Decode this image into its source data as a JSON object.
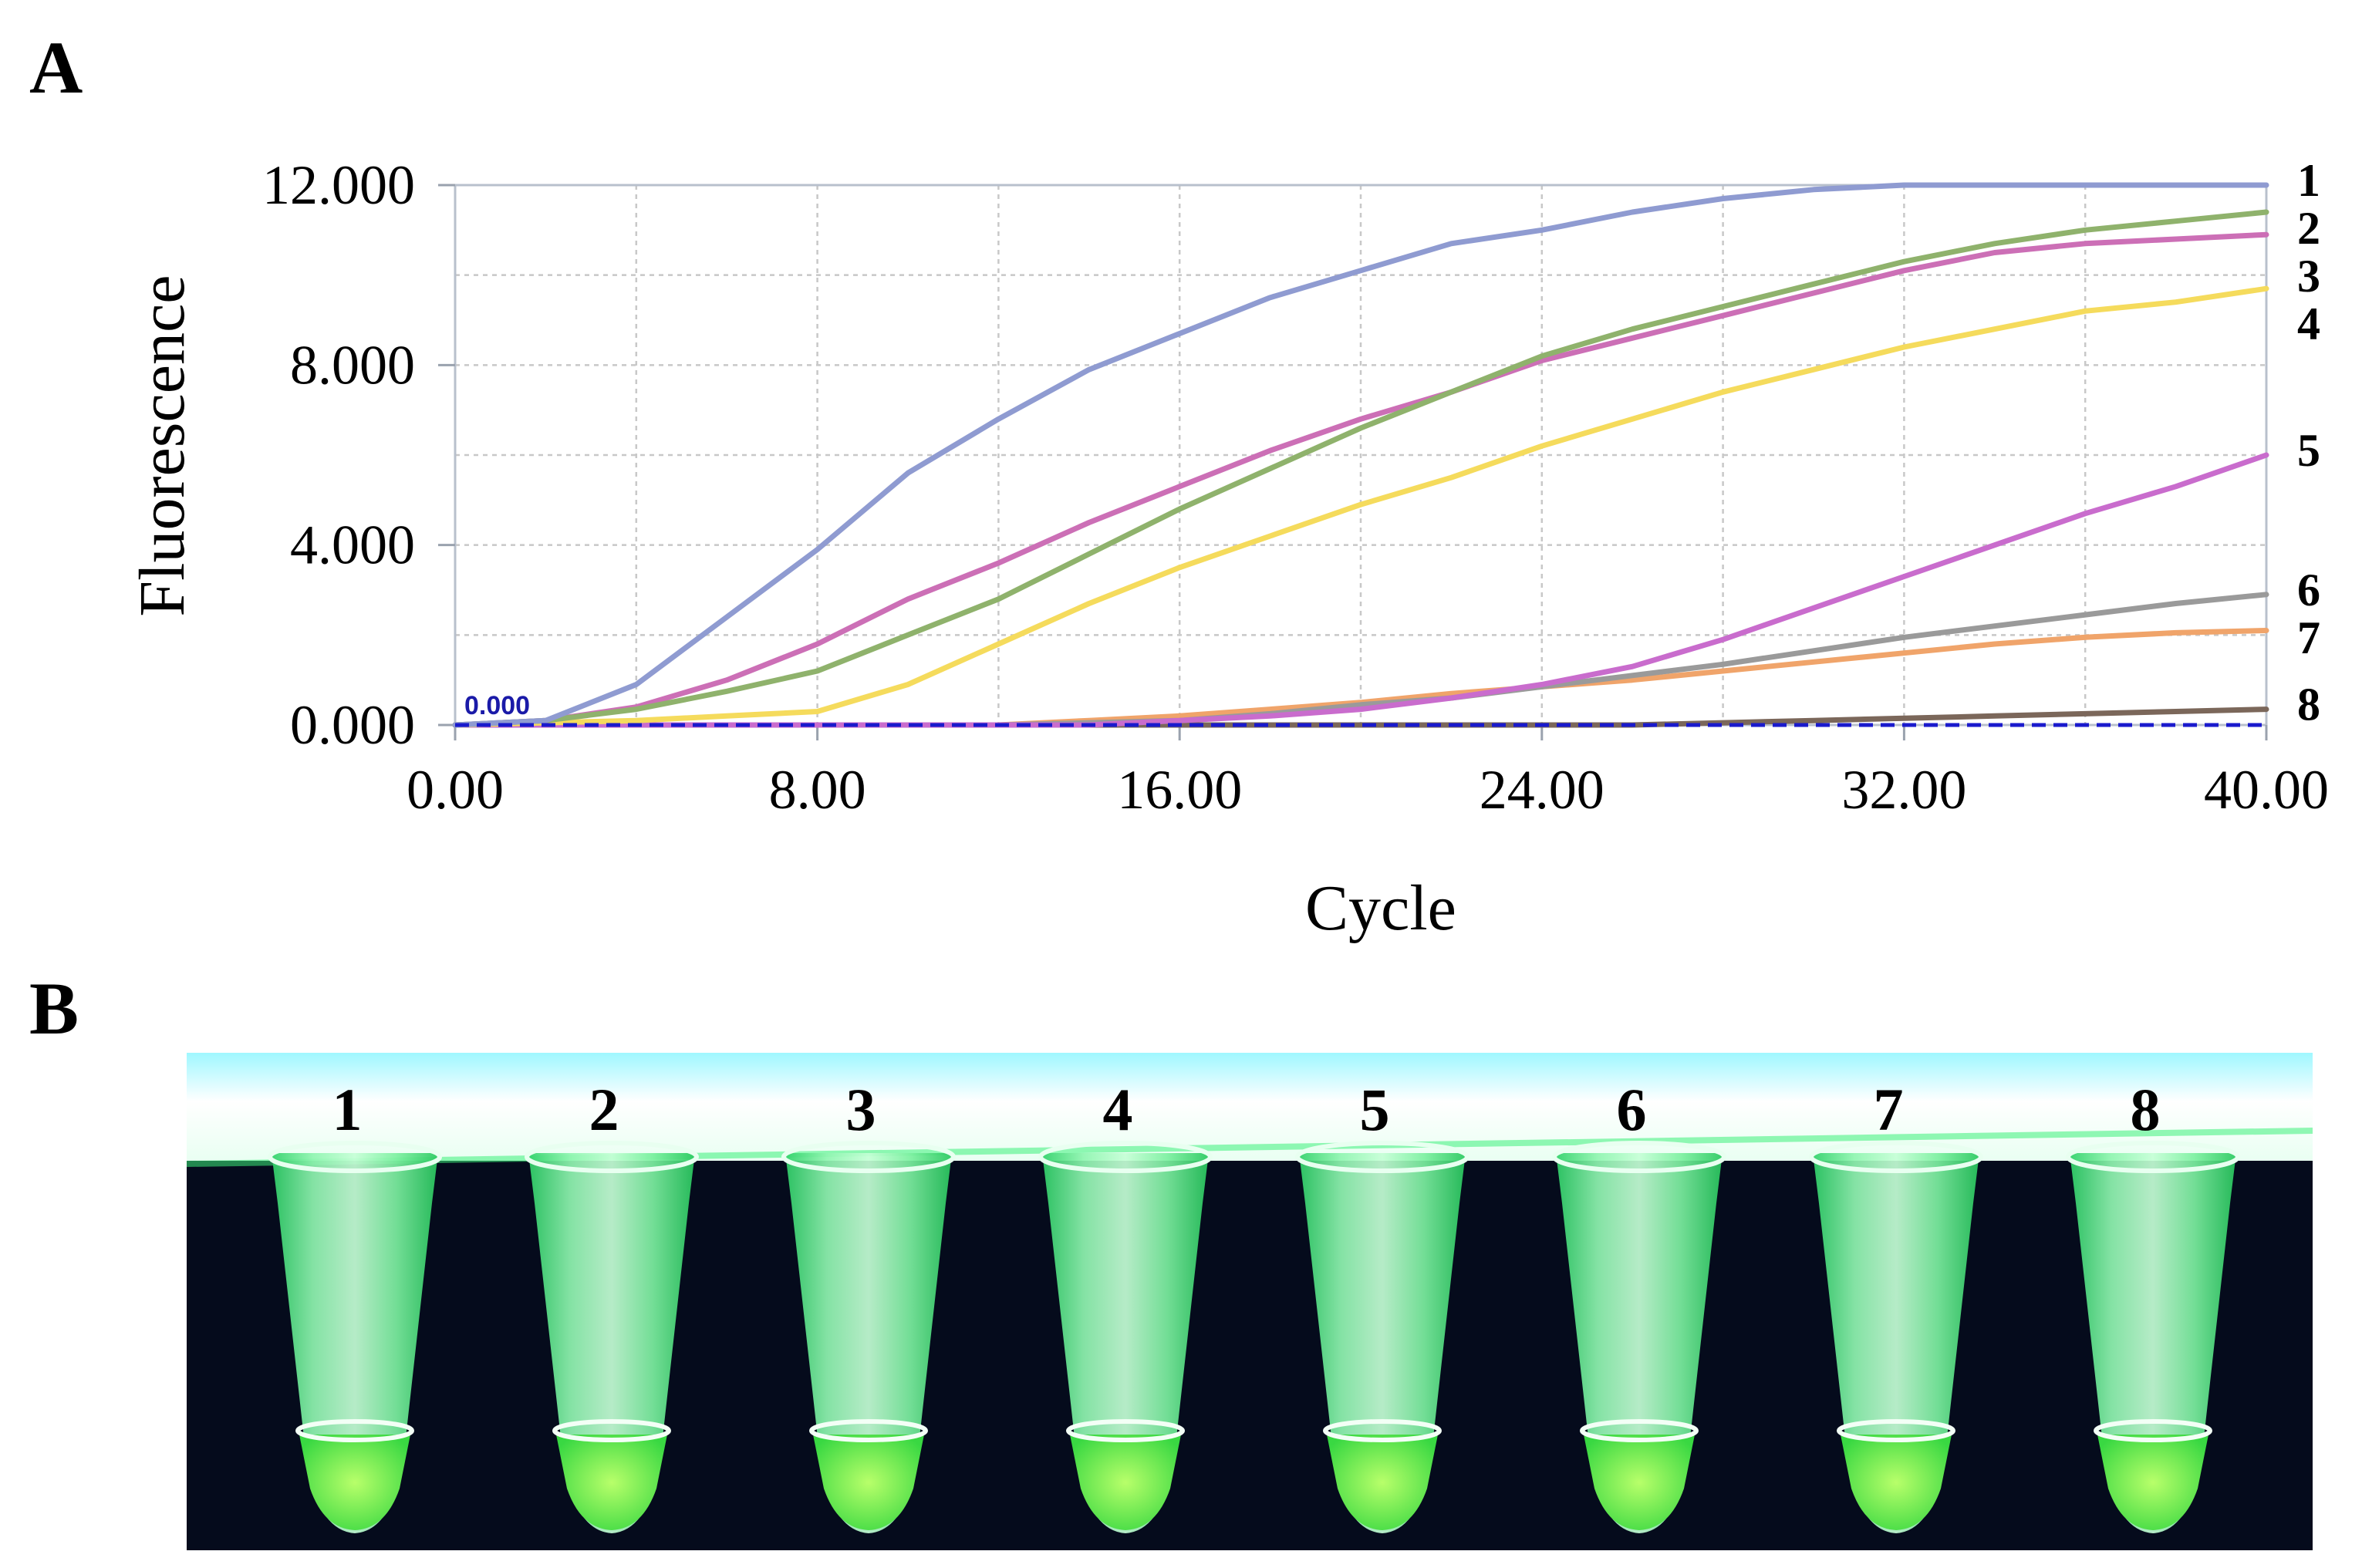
{
  "panels": {
    "a": "A",
    "b": "B"
  },
  "chart_data": {
    "type": "line",
    "xlabel": "Cycle",
    "ylabel": "Fluorescence",
    "xlim": [
      0,
      40
    ],
    "ylim": [
      0,
      12
    ],
    "x_ticks": [
      "0.00",
      "8.00",
      "16.00",
      "24.00",
      "32.00",
      "40.00"
    ],
    "x_tick_values": [
      0,
      8,
      16,
      24,
      32,
      40
    ],
    "y_ticks": [
      "0.000",
      "4.000",
      "8.000",
      "12.000"
    ],
    "y_tick_values": [
      0,
      4,
      8,
      12
    ],
    "grid": true,
    "threshold": {
      "label": "0.000",
      "value": 0,
      "color": "#1a1acc"
    },
    "x": [
      0,
      2,
      4,
      6,
      8,
      10,
      12,
      14,
      16,
      18,
      20,
      22,
      24,
      26,
      28,
      30,
      32,
      34,
      36,
      38,
      40
    ],
    "series": [
      {
        "label": "1",
        "color": "#8f9bd1",
        "values": [
          0,
          0.1,
          0.9,
          2.4,
          3.9,
          5.6,
          6.8,
          7.9,
          8.7,
          9.5,
          10.1,
          10.7,
          11.0,
          11.4,
          11.7,
          11.9,
          12.0,
          12.0,
          12.0,
          12.0,
          12.0
        ]
      },
      {
        "label": "2",
        "color": "#8fb26c",
        "values": [
          0,
          0.1,
          0.35,
          0.75,
          1.2,
          2.0,
          2.8,
          3.8,
          4.8,
          5.7,
          6.6,
          7.4,
          8.2,
          8.8,
          9.3,
          9.8,
          10.3,
          10.7,
          11.0,
          11.2,
          11.4
        ]
      },
      {
        "label": "3",
        "color": "#cc6fb6",
        "values": [
          0,
          0.1,
          0.4,
          1.0,
          1.8,
          2.8,
          3.6,
          4.5,
          5.3,
          6.1,
          6.8,
          7.4,
          8.1,
          8.6,
          9.1,
          9.6,
          10.1,
          10.5,
          10.7,
          10.8,
          10.9
        ]
      },
      {
        "label": "4",
        "color": "#f5db5c",
        "values": [
          0,
          0.05,
          0.1,
          0.2,
          0.3,
          0.9,
          1.8,
          2.7,
          3.5,
          4.2,
          4.9,
          5.5,
          6.2,
          6.8,
          7.4,
          7.9,
          8.4,
          8.8,
          9.2,
          9.4,
          9.7
        ]
      },
      {
        "label": "5",
        "color": "#c96ccd",
        "values": [
          0,
          0,
          0,
          0,
          0,
          0,
          0,
          0,
          0.1,
          0.2,
          0.35,
          0.6,
          0.9,
          1.3,
          1.9,
          2.6,
          3.3,
          4.0,
          4.7,
          5.3,
          6.0
        ]
      },
      {
        "label": "6",
        "color": "#9a9a9a",
        "values": [
          0,
          0,
          0,
          0,
          0,
          0,
          0,
          0.05,
          0.1,
          0.25,
          0.45,
          0.6,
          0.85,
          1.1,
          1.35,
          1.65,
          1.95,
          2.2,
          2.45,
          2.7,
          2.9
        ]
      },
      {
        "label": "7",
        "color": "#f0a46a",
        "values": [
          0,
          0,
          0,
          0,
          0,
          0,
          0,
          0.1,
          0.2,
          0.35,
          0.5,
          0.7,
          0.85,
          1.0,
          1.2,
          1.4,
          1.6,
          1.8,
          1.95,
          2.05,
          2.1
        ]
      },
      {
        "label": "8",
        "color": "#7b675a",
        "values": [
          0,
          0,
          0,
          0,
          0,
          0,
          0,
          0,
          0,
          0,
          0,
          0,
          0,
          0,
          0.05,
          0.1,
          0.15,
          0.2,
          0.25,
          0.3,
          0.35
        ]
      }
    ]
  },
  "photo": {
    "tube_labels": [
      "1",
      "2",
      "3",
      "4",
      "5",
      "6",
      "7",
      "8"
    ],
    "background_color": "#050b1c",
    "glow_color": "#3cf07a"
  }
}
